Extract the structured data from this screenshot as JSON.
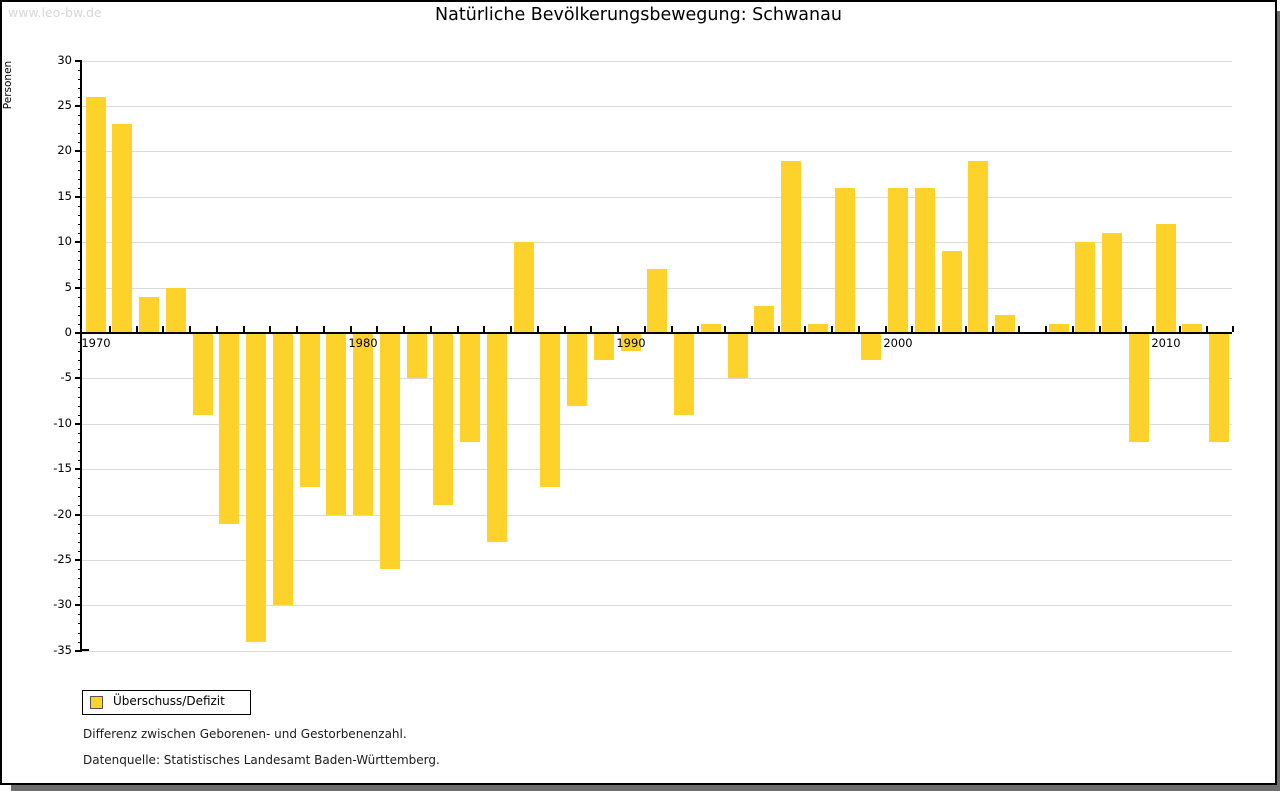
{
  "watermark": "www.leo-bw.de",
  "title": "Natürliche Bevölkerungsbewegung: Schwanau",
  "legend": {
    "label": "Überschuss/Defizit"
  },
  "notes": {
    "line1": "Differenz zwischen Geborenen- und Gestorbenenzahl.",
    "line2": "Datenquelle: Statistisches Landesamt Baden-Württemberg."
  },
  "colors": {
    "bar": "#FCD22B",
    "grid": "#DADADA",
    "axis": "#000000",
    "shadow": "#6E6E6E",
    "watermark": "#D7D7D7",
    "legend_swatch_border": "#555555"
  },
  "chart_data": {
    "type": "bar",
    "title": "Natürliche Bevölkerungsbewegung: Schwanau",
    "series_name": "Überschuss/Defizit",
    "xlabel": "",
    "ylabel": "Personen",
    "ylim": [
      -35,
      30
    ],
    "y_major_tick_interval": 5,
    "y_minor_tick_interval": 1,
    "grid": "horizontal-major",
    "legend_position": "bottom-left",
    "x_tick_labels": [
      "1970",
      "1980",
      "1990",
      "2000",
      "2010"
    ],
    "categories": [
      1970,
      1971,
      1972,
      1973,
      1974,
      1975,
      1976,
      1977,
      1978,
      1979,
      1980,
      1981,
      1982,
      1983,
      1984,
      1985,
      1986,
      1987,
      1988,
      1989,
      1990,
      1991,
      1992,
      1993,
      1994,
      1995,
      1996,
      1997,
      1998,
      1999,
      2000,
      2001,
      2002,
      2003,
      2004,
      2005,
      2006,
      2007,
      2008,
      2009,
      2010,
      2011,
      2012
    ],
    "values": [
      26,
      23,
      4,
      5,
      -9,
      -21,
      -34,
      -30,
      -17,
      -20,
      -20,
      -26,
      -5,
      -19,
      -12,
      -23,
      10,
      -17,
      -8,
      -3,
      -2,
      7,
      -9,
      1,
      -5,
      3,
      19,
      1,
      16,
      -3,
      16,
      16,
      9,
      19,
      2,
      0,
      1,
      10,
      11,
      -12,
      12,
      1,
      -12
    ]
  }
}
